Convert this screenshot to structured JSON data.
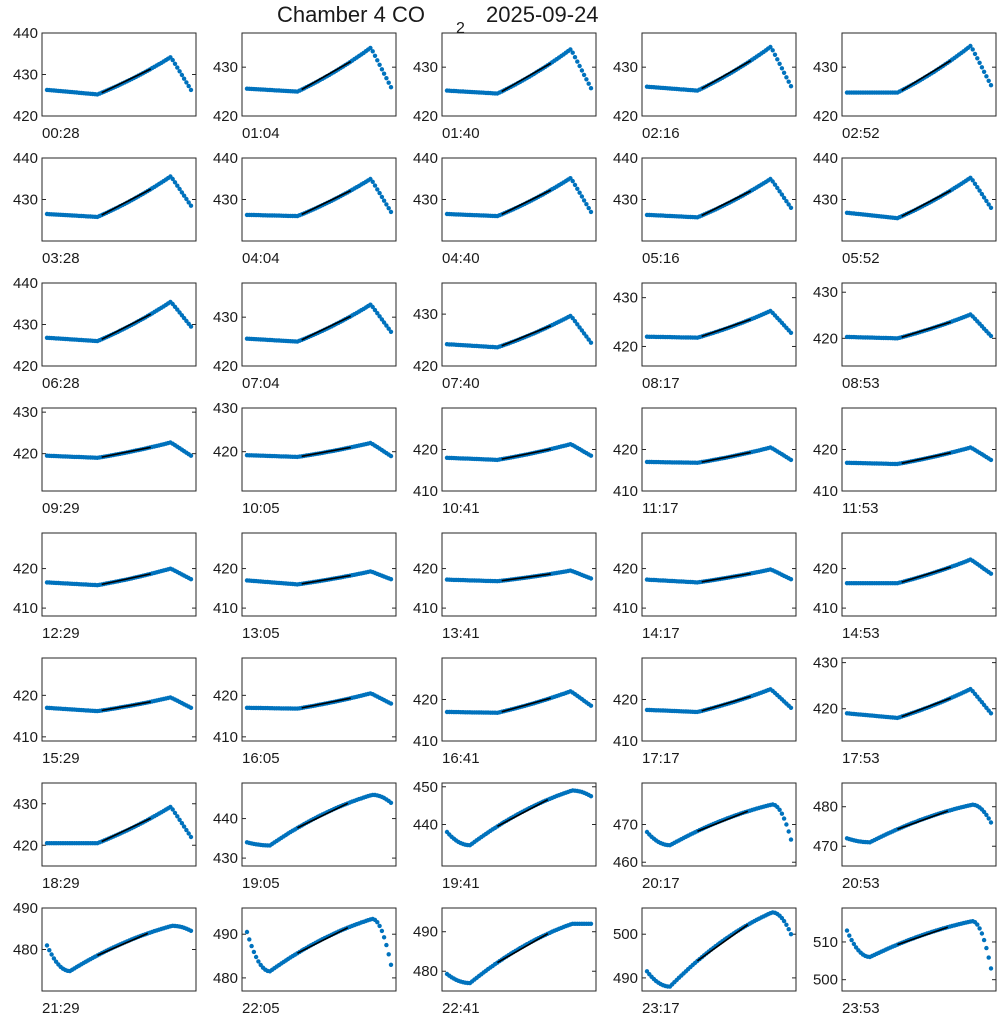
{
  "figure": {
    "title_main": "Chamber 4 CO",
    "title_subscript": "2",
    "title_date": "2025-09-24"
  },
  "colors": {
    "points": "#0072BD",
    "fit": "#000000",
    "axes": "#262626"
  },
  "chart_data": [
    {
      "type": "scatter",
      "label": "00:28",
      "ylim": [
        420,
        440
      ],
      "yticks": [
        420,
        430,
        440
      ],
      "shape": "rise",
      "start": 426.3,
      "base": 425.2,
      "peak": 434.2,
      "end": 426.3
    },
    {
      "type": "scatter",
      "label": "01:04",
      "ylim": [
        420,
        437
      ],
      "yticks": [
        420,
        430
      ],
      "shape": "rise",
      "start": 425.6,
      "base": 425.0,
      "peak": 434.0,
      "end": 425.9
    },
    {
      "type": "scatter",
      "label": "01:40",
      "ylim": [
        420,
        437
      ],
      "yticks": [
        420,
        430
      ],
      "shape": "rise",
      "start": 425.2,
      "base": 424.6,
      "peak": 433.7,
      "end": 425.7
    },
    {
      "type": "scatter",
      "label": "02:16",
      "ylim": [
        420,
        437
      ],
      "yticks": [
        420,
        430
      ],
      "shape": "rise",
      "start": 426.0,
      "base": 425.2,
      "peak": 434.2,
      "end": 426.1
    },
    {
      "type": "scatter",
      "label": "02:52",
      "ylim": [
        420,
        437
      ],
      "yticks": [
        420,
        430
      ],
      "shape": "rise",
      "start": 424.8,
      "base": 424.8,
      "peak": 434.4,
      "end": 426.3
    },
    {
      "type": "scatter",
      "label": "03:28",
      "ylim": [
        420,
        440
      ],
      "yticks": [
        430,
        440
      ],
      "shape": "rise",
      "start": 426.5,
      "base": 425.8,
      "peak": 435.6,
      "end": 428.5
    },
    {
      "type": "scatter",
      "label": "04:04",
      "ylim": [
        420,
        440
      ],
      "yticks": [
        430,
        440
      ],
      "shape": "rise",
      "start": 426.3,
      "base": 426.0,
      "peak": 435.0,
      "end": 427.0
    },
    {
      "type": "scatter",
      "label": "04:40",
      "ylim": [
        420,
        440
      ],
      "yticks": [
        430,
        440
      ],
      "shape": "rise",
      "start": 426.5,
      "base": 426.0,
      "peak": 435.2,
      "end": 427.0
    },
    {
      "type": "scatter",
      "label": "05:16",
      "ylim": [
        420,
        440
      ],
      "yticks": [
        430,
        440
      ],
      "shape": "rise",
      "start": 426.3,
      "base": 425.7,
      "peak": 435.0,
      "end": 428.0
    },
    {
      "type": "scatter",
      "label": "05:52",
      "ylim": [
        420,
        440
      ],
      "yticks": [
        430,
        440
      ],
      "shape": "rise",
      "start": 426.8,
      "base": 425.5,
      "peak": 435.3,
      "end": 428.0
    },
    {
      "type": "scatter",
      "label": "06:28",
      "ylim": [
        420,
        440
      ],
      "yticks": [
        420,
        430,
        440
      ],
      "shape": "rise",
      "start": 426.8,
      "base": 426.0,
      "peak": 435.5,
      "end": 429.5
    },
    {
      "type": "scatter",
      "label": "07:04",
      "ylim": [
        420,
        437
      ],
      "yticks": [
        420,
        430
      ],
      "shape": "rise",
      "start": 425.6,
      "base": 425.0,
      "peak": 432.6,
      "end": 427.0
    },
    {
      "type": "scatter",
      "label": "07:40",
      "ylim": [
        420,
        436
      ],
      "yticks": [
        420,
        430
      ],
      "shape": "rise",
      "start": 424.2,
      "base": 423.6,
      "peak": 429.7,
      "end": 424.5
    },
    {
      "type": "scatter",
      "label": "08:17",
      "ylim": [
        416,
        433
      ],
      "yticks": [
        420,
        430
      ],
      "shape": "rise",
      "start": 422.0,
      "base": 421.8,
      "peak": 427.3,
      "end": 422.8
    },
    {
      "type": "scatter",
      "label": "08:53",
      "ylim": [
        414,
        432
      ],
      "yticks": [
        420,
        430
      ],
      "shape": "rise",
      "start": 420.3,
      "base": 420.0,
      "peak": 425.2,
      "end": 420.5
    },
    {
      "type": "scatter",
      "label": "09:29",
      "ylim": [
        411,
        431
      ],
      "yticks": [
        420,
        430
      ],
      "shape": "rise",
      "start": 419.5,
      "base": 419.0,
      "peak": 422.7,
      "end": 419.5
    },
    {
      "type": "scatter",
      "label": "10:05",
      "ylim": [
        411,
        430
      ],
      "yticks": [
        420,
        430
      ],
      "shape": "rise",
      "start": 419.2,
      "base": 418.8,
      "peak": 422.0,
      "end": 419.0
    },
    {
      "type": "scatter",
      "label": "10:41",
      "ylim": [
        410,
        430
      ],
      "yticks": [
        410,
        420
      ],
      "shape": "rise",
      "start": 418.0,
      "base": 417.5,
      "peak": 421.3,
      "end": 418.5
    },
    {
      "type": "scatter",
      "label": "11:17",
      "ylim": [
        410,
        430
      ],
      "yticks": [
        410,
        420
      ],
      "shape": "rise",
      "start": 417.0,
      "base": 416.8,
      "peak": 420.5,
      "end": 417.5
    },
    {
      "type": "scatter",
      "label": "11:53",
      "ylim": [
        410,
        430
      ],
      "yticks": [
        410,
        420
      ],
      "shape": "rise",
      "start": 416.8,
      "base": 416.5,
      "peak": 420.5,
      "end": 417.5
    },
    {
      "type": "scatter",
      "label": "12:29",
      "ylim": [
        408,
        429
      ],
      "yticks": [
        410,
        420
      ],
      "shape": "rise",
      "start": 416.5,
      "base": 415.8,
      "peak": 420.0,
      "end": 417.3
    },
    {
      "type": "scatter",
      "label": "13:05",
      "ylim": [
        408,
        429
      ],
      "yticks": [
        410,
        420
      ],
      "shape": "rise",
      "start": 417.0,
      "base": 416.0,
      "peak": 419.3,
      "end": 417.3
    },
    {
      "type": "scatter",
      "label": "13:41",
      "ylim": [
        408,
        429
      ],
      "yticks": [
        410,
        420
      ],
      "shape": "rise",
      "start": 417.2,
      "base": 416.8,
      "peak": 419.5,
      "end": 417.5
    },
    {
      "type": "scatter",
      "label": "14:17",
      "ylim": [
        408,
        429
      ],
      "yticks": [
        410,
        420
      ],
      "shape": "rise",
      "start": 417.2,
      "base": 416.5,
      "peak": 419.8,
      "end": 417.3
    },
    {
      "type": "scatter",
      "label": "14:53",
      "ylim": [
        408,
        429
      ],
      "yticks": [
        410,
        420
      ],
      "shape": "rise",
      "start": 416.3,
      "base": 416.3,
      "peak": 422.3,
      "end": 418.7
    },
    {
      "type": "scatter",
      "label": "15:29",
      "ylim": [
        409,
        429
      ],
      "yticks": [
        410,
        420
      ],
      "shape": "rise",
      "start": 417.0,
      "base": 416.2,
      "peak": 419.5,
      "end": 417.0
    },
    {
      "type": "scatter",
      "label": "16:05",
      "ylim": [
        409,
        429
      ],
      "yticks": [
        410,
        420
      ],
      "shape": "rise",
      "start": 417.0,
      "base": 416.8,
      "peak": 420.5,
      "end": 418.0
    },
    {
      "type": "scatter",
      "label": "16:41",
      "ylim": [
        410,
        430
      ],
      "yticks": [
        410,
        420
      ],
      "shape": "rise",
      "start": 417.0,
      "base": 416.8,
      "peak": 422.0,
      "end": 418.5
    },
    {
      "type": "scatter",
      "label": "17:17",
      "ylim": [
        410,
        430
      ],
      "yticks": [
        410,
        420
      ],
      "shape": "rise",
      "start": 417.5,
      "base": 417.0,
      "peak": 422.5,
      "end": 418.0
    },
    {
      "type": "scatter",
      "label": "17:53",
      "ylim": [
        413,
        431
      ],
      "yticks": [
        420,
        430
      ],
      "shape": "rise",
      "start": 419.0,
      "base": 418.0,
      "peak": 424.3,
      "end": 419.0
    },
    {
      "type": "scatter",
      "label": "18:29",
      "ylim": [
        415,
        435
      ],
      "yticks": [
        420,
        430
      ],
      "shape": "rise",
      "start": 420.5,
      "base": 420.5,
      "peak": 429.3,
      "end": 422.0
    },
    {
      "type": "scatter",
      "label": "19:05",
      "ylim": [
        428,
        449
      ],
      "yticks": [
        430,
        440
      ],
      "shape": "dip",
      "start": 434.0,
      "base": 433.2,
      "peak": 446.0,
      "end": 444.0
    },
    {
      "type": "scatter",
      "label": "19:41",
      "ylim": [
        429,
        451
      ],
      "yticks": [
        440,
        450
      ],
      "shape": "dip",
      "start": 438.0,
      "base": 434.5,
      "peak": 449.0,
      "end": 447.5
    },
    {
      "type": "scatter",
      "label": "20:17",
      "ylim": [
        459,
        481
      ],
      "yticks": [
        460,
        470
      ],
      "shape": "dip",
      "start": 468.0,
      "base": 464.5,
      "peak": 475.3,
      "end": 466.0
    },
    {
      "type": "scatter",
      "label": "20:53",
      "ylim": [
        465,
        486
      ],
      "yticks": [
        470,
        480
      ],
      "shape": "dip",
      "start": 472.0,
      "base": 471.0,
      "peak": 480.5,
      "end": 476.0
    },
    {
      "type": "scatter",
      "label": "21:29",
      "ylim": [
        470,
        490
      ],
      "yticks": [
        480,
        490
      ],
      "shape": "dip",
      "start": 481.0,
      "base": 474.8,
      "peak": 485.7,
      "end": 484.5
    },
    {
      "type": "scatter",
      "label": "22:05",
      "ylim": [
        477,
        496
      ],
      "yticks": [
        480,
        490
      ],
      "shape": "dip",
      "start": 490.5,
      "base": 481.5,
      "peak": 493.5,
      "end": 483.0
    },
    {
      "type": "scatter",
      "label": "22:41",
      "ylim": [
        475,
        496
      ],
      "yticks": [
        480,
        490
      ],
      "shape": "dip",
      "start": 479.3,
      "base": 477.0,
      "peak": 492.0,
      "end": 492.0
    },
    {
      "type": "scatter",
      "label": "23:17",
      "ylim": [
        487,
        506
      ],
      "yticks": [
        490,
        500
      ],
      "shape": "dip",
      "start": 491.5,
      "base": 488.0,
      "peak": 505.0,
      "end": 500.0
    },
    {
      "type": "scatter",
      "label": "23:53",
      "ylim": [
        497,
        519
      ],
      "yticks": [
        500,
        510
      ],
      "shape": "dip",
      "start": 513.0,
      "base": 506.0,
      "peak": 515.5,
      "end": 503.0
    }
  ]
}
